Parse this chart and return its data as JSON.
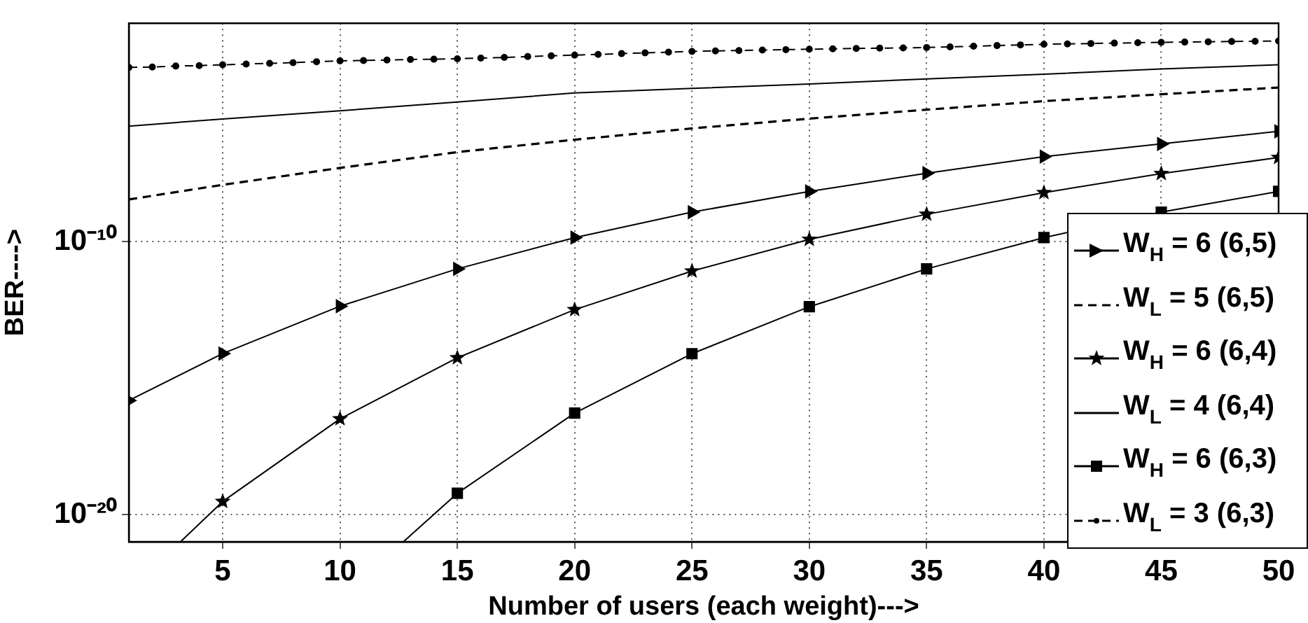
{
  "chart_data": {
    "type": "line",
    "xlabel": "Number of users (each weight)--->",
    "ylabel": "BER---->",
    "xlim": [
      1,
      50
    ],
    "xticks": [
      5,
      10,
      15,
      20,
      25,
      30,
      35,
      40,
      45,
      50
    ],
    "ylim": [
      1e-21,
      0.01
    ],
    "yticks": [
      {
        "value": 1e-10,
        "label": "10⁻¹⁰"
      },
      {
        "value": 1e-20,
        "label": "10⁻²⁰"
      }
    ],
    "log": "y",
    "grid": true,
    "legend": "bottom right",
    "series": [
      {
        "name": "W$_{H}$ = 6 (6,5)",
        "color": "#000000",
        "marker": "triangle",
        "line_style": "solid",
        "x": [
          1,
          5,
          10,
          15,
          20,
          25,
          30,
          35,
          40,
          45,
          50
        ],
        "values": [
          1.5e-16,
          7.9e-15,
          4.3e-13,
          1e-11,
          1.4e-10,
          1.2e-09,
          6.9e-09,
          3.2e-08,
          1.3e-07,
          3.8e-07,
          1.1e-06
        ]
      },
      {
        "name": "W$_{L}$ = 5 (6,5)",
        "color": "#000000",
        "marker": "none",
        "line_style": "dashed",
        "x": [
          1,
          5,
          10,
          15,
          20,
          25,
          30,
          35,
          40,
          45,
          50
        ],
        "values": [
          3.5e-09,
          1.2e-08,
          5e-08,
          1.9e-07,
          5.4e-07,
          1.4e-06,
          3.2e-06,
          6.8e-06,
          1.4e-05,
          2.5e-05,
          4.4e-05
        ]
      },
      {
        "name": "W$_{H}$ = 6 (6,4)",
        "color": "#000000",
        "marker": "star",
        "line_style": "solid",
        "x": [
          3.2,
          5,
          10,
          15,
          20,
          25,
          30,
          35,
          40,
          45,
          50
        ],
        "values": [
          1e-21,
          3e-20,
          3.2e-17,
          5.5e-15,
          3.2e-13,
          8.3e-12,
          1.2e-10,
          1e-09,
          6.2e-09,
          3.1e-08,
          1.2e-07
        ]
      },
      {
        "name": "W$_{L}$ = 4 (6,4)",
        "color": "#000000",
        "marker": "none",
        "line_style": "solid",
        "x": [
          1,
          5,
          10,
          15,
          20,
          25,
          30,
          35,
          40,
          45,
          50
        ],
        "values": [
          1.7e-06,
          3.1e-06,
          6.2e-06,
          1.3e-05,
          2.8e-05,
          4.1e-05,
          5.9e-05,
          9.1e-05,
          0.000135,
          0.00021,
          0.0003
        ]
      },
      {
        "name": "W$_{H}$ = 6 (6,3)",
        "color": "#000000",
        "marker": "square",
        "line_style": "solid",
        "x": [
          12.7,
          15,
          20,
          25,
          30,
          35,
          40,
          45,
          50
        ],
        "values": [
          1e-21,
          6e-20,
          5.2e-17,
          7.8e-15,
          4.1e-13,
          1e-11,
          1.4e-10,
          1.2e-09,
          6.9e-09
        ]
      },
      {
        "name": "W$_{L}$ = 3 (6,3)",
        "color": "#000000",
        "marker": "circle",
        "line_style": "dashed",
        "x": [
          1,
          2,
          3,
          4,
          5,
          6,
          7,
          8,
          9,
          10,
          11,
          12,
          13,
          14,
          15,
          16,
          17,
          18,
          19,
          20,
          21,
          22,
          23,
          24,
          25,
          26,
          27,
          28,
          29,
          30,
          31,
          32,
          33,
          34,
          35,
          36,
          37,
          38,
          39,
          40,
          41,
          42,
          43,
          44,
          45,
          46,
          47,
          48,
          49,
          50
        ],
        "values": [
          0.00024,
          0.00025,
          0.00027,
          0.00028,
          0.0003,
          0.00032,
          0.00034,
          0.00036,
          0.00039,
          0.00042,
          0.00043,
          0.00045,
          0.00047,
          0.00048,
          0.0005,
          0.00053,
          0.00056,
          0.0006,
          0.00064,
          0.00068,
          0.00072,
          0.00077,
          0.00082,
          0.00087,
          0.00093,
          0.00097,
          0.001,
          0.00104,
          0.00108,
          0.00112,
          0.00115,
          0.00119,
          0.00122,
          0.00125,
          0.00129,
          0.00136,
          0.00144,
          0.00152,
          0.00161,
          0.0017,
          0.00175,
          0.00181,
          0.00187,
          0.00193,
          0.002,
          0.00204,
          0.00209,
          0.00214,
          0.00219,
          0.00224
        ]
      }
    ]
  }
}
